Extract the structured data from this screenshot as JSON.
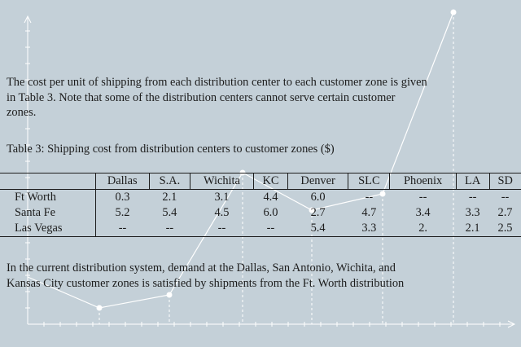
{
  "paragraph_1": "The cost per unit of shipping from each distribution center to each customer zone is given\nin Table 3. Note that some of the distribution centers cannot serve certain customer\nzones.",
  "table_caption": "Table 3: Shipping cost from distribution centers to customer zones ($)",
  "table": {
    "columns": [
      "Dallas",
      "S.A.",
      "Wichita",
      "KC",
      "Denver",
      "SLC",
      "Phoenix",
      "LA",
      "SD"
    ],
    "rows": [
      {
        "label": "Ft Worth",
        "values": [
          "0.3",
          "2.1",
          "3.1",
          "4.4",
          "6.0",
          "--",
          "--",
          "--",
          "--"
        ]
      },
      {
        "label": "Santa Fe",
        "values": [
          "5.2",
          "5.4",
          "4.5",
          "6.0",
          "2.7",
          "4.7",
          "3.4",
          "3.3",
          "2.7"
        ]
      },
      {
        "label": "Las Vegas",
        "values": [
          "--",
          "--",
          "--",
          "--",
          "5.4",
          "3.3",
          "2.",
          "2.1",
          "2.5"
        ]
      }
    ]
  },
  "paragraph_2": "In the current distribution system, demand at the Dallas, San Antonio, Wichita, and\nKansas City customer zones is satisfied by shipments from the Ft. Worth distribution",
  "overlay": {
    "line_color": "#ffffff",
    "points": [
      [
        0.0,
        0.0
      ],
      [
        1.0,
        0.0
      ],
      [
        2.0,
        0.1
      ],
      [
        3.0,
        0.55
      ],
      [
        4.0,
        0.35
      ],
      [
        5.0,
        0.4
      ],
      [
        5.7,
        0.95
      ]
    ]
  }
}
